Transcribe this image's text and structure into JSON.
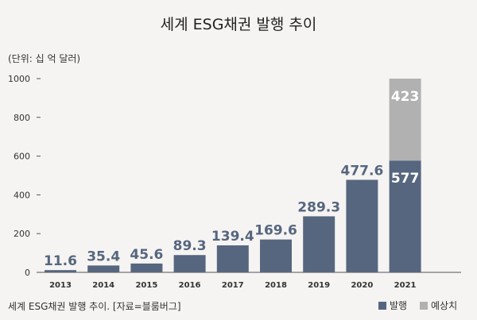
{
  "chart_data": {
    "type": "bar",
    "title": "세계 ESG채권 발행 추이",
    "unit_label": "(단위: 십 억 달러)",
    "categories": [
      "2013",
      "2014",
      "2015",
      "2016",
      "2017",
      "2018",
      "2019",
      "2020",
      "2021"
    ],
    "series": [
      {
        "name": "발행",
        "values": [
          11.6,
          35.4,
          45.6,
          89.3,
          139.4,
          169.6,
          289.3,
          477.6,
          577
        ],
        "labels": [
          "11.6",
          "35.4",
          "45.6",
          "89.3",
          "139.4",
          "169.6",
          "289.3",
          "477.6",
          "577"
        ],
        "color": "#56667f"
      },
      {
        "name": "예상치",
        "values": [
          0,
          0,
          0,
          0,
          0,
          0,
          0,
          0,
          423
        ],
        "labels": [
          "",
          "",
          "",
          "",
          "",
          "",
          "",
          "",
          "423"
        ],
        "color": "#b1b1b1"
      }
    ],
    "stacked": true,
    "ylim": [
      0,
      1000
    ],
    "yticks": [
      0,
      200,
      400,
      600,
      800,
      1000
    ],
    "ytick_labels": [
      "0",
      "200",
      "400",
      "600",
      "800",
      "1000"
    ],
    "legend_position": "bottom-right",
    "grid": false
  },
  "source": "세계 ESG채권 발행 추이. [자료=블룸버그]"
}
